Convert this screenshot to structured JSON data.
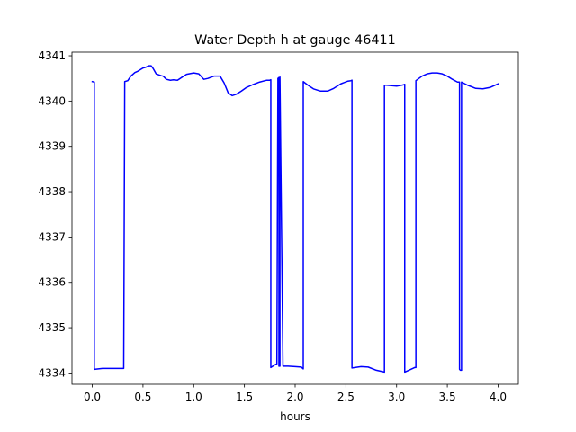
{
  "chart_data": {
    "type": "line",
    "title": "Water Depth h at gauge 46411",
    "xlabel": "hours",
    "ylabel": "",
    "xlim": [
      -0.2,
      4.2
    ],
    "ylim": [
      4333.75,
      4341.08
    ],
    "xticks": [
      0.0,
      0.5,
      1.0,
      1.5,
      2.0,
      2.5,
      3.0,
      3.5,
      4.0
    ],
    "xtick_labels": [
      "0.0",
      "0.5",
      "1.0",
      "1.5",
      "2.0",
      "2.5",
      "3.0",
      "3.5",
      "4.0"
    ],
    "yticks": [
      4334,
      4335,
      4336,
      4337,
      4338,
      4339,
      4340,
      4341
    ],
    "ytick_labels": [
      "4334",
      "4335",
      "4336",
      "4337",
      "4338",
      "4339",
      "4340",
      "4341"
    ],
    "grid": false,
    "series": [
      {
        "name": "",
        "color": "#0000ff",
        "x": [
          0.0,
          0.02,
          0.02,
          0.1,
          0.2,
          0.31,
          0.32,
          0.35,
          0.38,
          0.42,
          0.45,
          0.5,
          0.53,
          0.56,
          0.58,
          0.6,
          0.63,
          0.68,
          0.7,
          0.73,
          0.77,
          0.8,
          0.84,
          0.88,
          0.93,
          1.0,
          1.05,
          1.1,
          1.14,
          1.2,
          1.26,
          1.3,
          1.34,
          1.38,
          1.42,
          1.47,
          1.52,
          1.58,
          1.65,
          1.72,
          1.75,
          1.76,
          1.76,
          1.8,
          1.82,
          1.83,
          1.84,
          1.84,
          1.85,
          1.85,
          1.88,
          1.93,
          2.0,
          2.06,
          2.08,
          2.08,
          2.12,
          2.18,
          2.25,
          2.32,
          2.38,
          2.45,
          2.52,
          2.55,
          2.56,
          2.56,
          2.65,
          2.72,
          2.8,
          2.88,
          2.88,
          2.9,
          3.0,
          3.05,
          3.07,
          3.08,
          3.08,
          3.12,
          3.18,
          3.19,
          3.19,
          3.25,
          3.3,
          3.35,
          3.4,
          3.45,
          3.5,
          3.55,
          3.6,
          3.62,
          3.62,
          3.63,
          3.64,
          3.64,
          3.7,
          3.78,
          3.85,
          3.92,
          4.0
        ],
        "y": [
          4340.43,
          4340.42,
          4334.08,
          4334.1,
          4334.1,
          4334.1,
          4340.43,
          4340.45,
          4340.55,
          4340.63,
          4340.66,
          4340.73,
          4340.75,
          4340.78,
          4340.78,
          4340.72,
          4340.6,
          4340.56,
          4340.55,
          4340.48,
          4340.46,
          4340.47,
          4340.46,
          4340.52,
          4340.59,
          4340.62,
          4340.6,
          4340.48,
          4340.5,
          4340.55,
          4340.55,
          4340.4,
          4340.18,
          4340.12,
          4340.15,
          4340.22,
          4340.3,
          4340.36,
          4340.42,
          4340.46,
          4340.46,
          4340.47,
          4334.12,
          4334.18,
          4334.2,
          4340.5,
          4340.52,
          4334.15,
          4334.15,
          4340.53,
          4334.15,
          4334.15,
          4334.14,
          4334.13,
          4334.09,
          4340.43,
          4340.36,
          4340.27,
          4340.22,
          4340.22,
          4340.28,
          4340.38,
          4340.44,
          4340.45,
          4340.46,
          4334.11,
          4334.14,
          4334.13,
          4334.06,
          4334.02,
          4340.35,
          4340.35,
          4340.33,
          4340.35,
          4340.36,
          4340.37,
          4334.02,
          4334.06,
          4334.12,
          4334.12,
          4340.45,
          4340.55,
          4340.6,
          4340.62,
          4340.62,
          4340.6,
          4340.55,
          4340.48,
          4340.42,
          4340.42,
          4334.08,
          4334.06,
          4334.06,
          4340.42,
          4340.35,
          4340.28,
          4340.27,
          4340.3,
          4340.38
        ]
      }
    ]
  }
}
